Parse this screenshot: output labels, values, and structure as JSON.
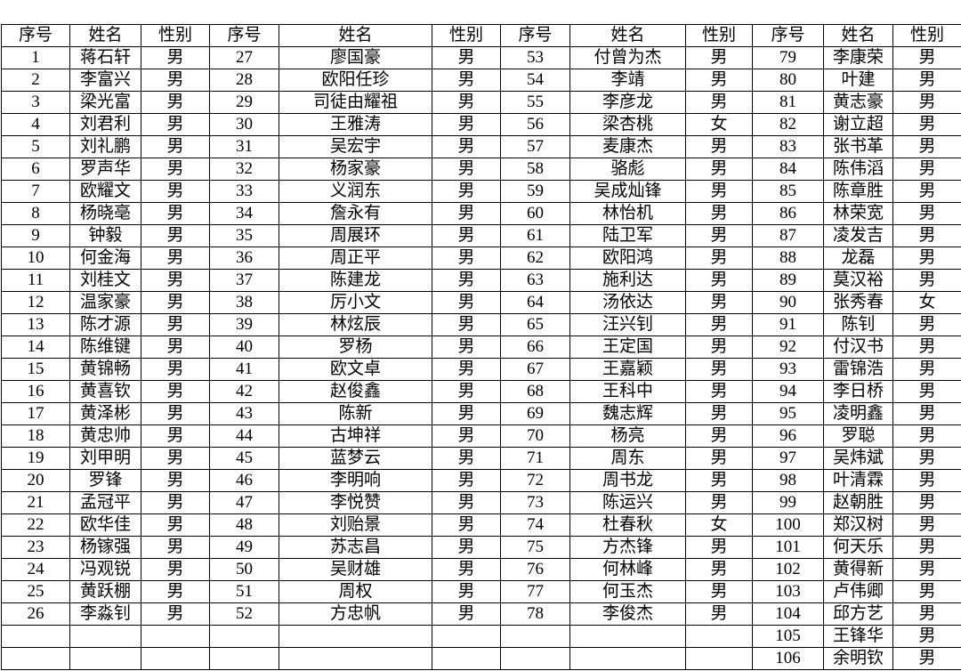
{
  "table": {
    "header": [
      "序号",
      "姓名",
      "性别",
      "序号",
      "姓名",
      "性别",
      "序号",
      "姓名",
      "性别",
      "序号",
      "姓名",
      "性别"
    ],
    "rows": [
      [
        1,
        "蒋石轩",
        "男",
        27,
        "廖国豪",
        "男",
        53,
        "付曾为杰",
        "男",
        79,
        "李康荣",
        "男"
      ],
      [
        2,
        "李富兴",
        "男",
        28,
        "欧阳任珍",
        "男",
        54,
        "李靖",
        "男",
        80,
        "叶建",
        "男"
      ],
      [
        3,
        "梁光富",
        "男",
        29,
        "司徒由耀祖",
        "男",
        55,
        "李彦龙",
        "男",
        81,
        "黄志豪",
        "男"
      ],
      [
        4,
        "刘君利",
        "男",
        30,
        "王雅涛",
        "男",
        56,
        "梁杏桃",
        "女",
        82,
        "谢立超",
        "男"
      ],
      [
        5,
        "刘礼鹏",
        "男",
        31,
        "吴宏宇",
        "男",
        57,
        "麦康杰",
        "男",
        83,
        "张书革",
        "男"
      ],
      [
        6,
        "罗声华",
        "男",
        32,
        "杨家豪",
        "男",
        58,
        "骆彪",
        "男",
        84,
        "陈伟滔",
        "男"
      ],
      [
        7,
        "欧耀文",
        "男",
        33,
        "义润东",
        "男",
        59,
        "吴成灿锋",
        "男",
        85,
        "陈章胜",
        "男"
      ],
      [
        8,
        "杨晓亳",
        "男",
        34,
        "詹永有",
        "男",
        60,
        "林怡机",
        "男",
        86,
        "林荣宽",
        "男"
      ],
      [
        9,
        "钟毅",
        "男",
        35,
        "周展环",
        "男",
        61,
        "陆卫军",
        "男",
        87,
        "凌发吉",
        "男"
      ],
      [
        10,
        "何金海",
        "男",
        36,
        "周正平",
        "男",
        62,
        "欧阳鸿",
        "男",
        88,
        "龙磊",
        "男"
      ],
      [
        11,
        "刘桂文",
        "男",
        37,
        "陈建龙",
        "男",
        63,
        "施利达",
        "男",
        89,
        "莫汉裕",
        "男"
      ],
      [
        12,
        "温家豪",
        "男",
        38,
        "厉小文",
        "男",
        64,
        "汤依达",
        "男",
        90,
        "张秀春",
        "女"
      ],
      [
        13,
        "陈才源",
        "男",
        39,
        "林炫辰",
        "男",
        65,
        "汪兴钊",
        "男",
        91,
        "陈钊",
        "男"
      ],
      [
        14,
        "陈维键",
        "男",
        40,
        "罗杨",
        "男",
        66,
        "王定国",
        "男",
        92,
        "付汉书",
        "男"
      ],
      [
        15,
        "黄锦畅",
        "男",
        41,
        "欧文卓",
        "男",
        67,
        "王嘉颖",
        "男",
        93,
        "雷锦浩",
        "男"
      ],
      [
        16,
        "黄喜钦",
        "男",
        42,
        "赵俊鑫",
        "男",
        68,
        "王科中",
        "男",
        94,
        "李日桥",
        "男"
      ],
      [
        17,
        "黄泽彬",
        "男",
        43,
        "陈新",
        "男",
        69,
        "魏志辉",
        "男",
        95,
        "凌明鑫",
        "男"
      ],
      [
        18,
        "黄忠帅",
        "男",
        44,
        "古坤祥",
        "男",
        70,
        "杨亮",
        "男",
        96,
        "罗聪",
        "男"
      ],
      [
        19,
        "刘甲明",
        "男",
        45,
        "蓝梦云",
        "男",
        71,
        "周东",
        "男",
        97,
        "吴炜斌",
        "男"
      ],
      [
        20,
        "罗锋",
        "男",
        46,
        "李明响",
        "男",
        72,
        "周书龙",
        "男",
        98,
        "叶清霖",
        "男"
      ],
      [
        21,
        "孟冠平",
        "男",
        47,
        "李悦赞",
        "男",
        73,
        "陈运兴",
        "男",
        99,
        "赵朝胜",
        "男"
      ],
      [
        22,
        "欧华佳",
        "男",
        48,
        "刘贻景",
        "男",
        74,
        "杜春秋",
        "女",
        100,
        "郑汉树",
        "男"
      ],
      [
        23,
        "杨镓强",
        "男",
        49,
        "苏志昌",
        "男",
        75,
        "方杰锋",
        "男",
        101,
        "何天乐",
        "男"
      ],
      [
        24,
        "冯观锐",
        "男",
        50,
        "吴财雄",
        "男",
        76,
        "何林峰",
        "男",
        102,
        "黄得新",
        "男"
      ],
      [
        25,
        "黄跃棚",
        "男",
        51,
        "周权",
        "男",
        77,
        "何玉杰",
        "男",
        103,
        "卢伟卿",
        "男"
      ],
      [
        26,
        "李淼钊",
        "男",
        52,
        "方忠帆",
        "男",
        78,
        "李俊杰",
        "男",
        104,
        "邱方艺",
        "男"
      ],
      [
        null,
        null,
        null,
        null,
        null,
        null,
        null,
        null,
        null,
        105,
        "王锋华",
        "男"
      ],
      [
        null,
        null,
        null,
        null,
        null,
        null,
        null,
        null,
        null,
        106,
        "余明钦",
        "男"
      ]
    ]
  }
}
